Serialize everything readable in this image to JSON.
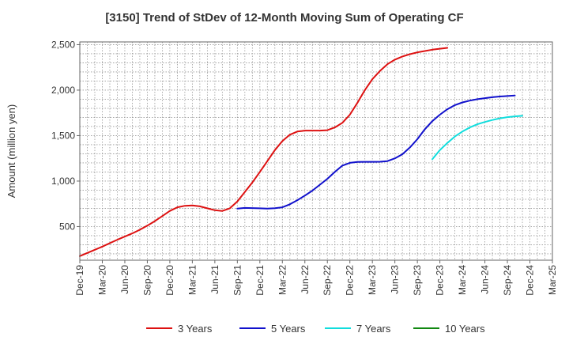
{
  "chart_data": {
    "type": "line",
    "title": "[3150]  Trend of StDev of 12-Month Moving Sum of Operating CF",
    "ylabel": "Amount (million yen)",
    "xlabel": "",
    "x_ticks": [
      "Dec-19",
      "Mar-20",
      "Jun-20",
      "Sep-20",
      "Dec-20",
      "Mar-21",
      "Jun-21",
      "Sep-21",
      "Dec-21",
      "Mar-22",
      "Jun-22",
      "Sep-22",
      "Dec-22",
      "Mar-23",
      "Jun-23",
      "Sep-23",
      "Dec-23",
      "Mar-24",
      "Jun-24",
      "Sep-24",
      "Dec-24",
      "Mar-25"
    ],
    "y_ticks": [
      500,
      1000,
      1500,
      2000,
      2500
    ],
    "y_tick_labels": [
      "500",
      "1,000",
      "1,500",
      "2,000",
      "2,500"
    ],
    "ylim": [
      130,
      2530
    ],
    "grid": true,
    "legend_position": "bottom",
    "series": [
      {
        "name": "3 Years",
        "color": "#dd1111",
        "start_index": 0,
        "values": [
          175,
          210,
          245,
          280,
          318,
          355,
          390,
          425,
          465,
          510,
          560,
          615,
          672,
          712,
          728,
          732,
          722,
          700,
          680,
          672,
          700,
          775,
          880,
          985,
          1100,
          1220,
          1340,
          1440,
          1510,
          1545,
          1555,
          1555,
          1555,
          1560,
          1590,
          1640,
          1730,
          1860,
          2000,
          2120,
          2210,
          2285,
          2335,
          2370,
          2395,
          2415,
          2430,
          2445,
          2455,
          2465
        ]
      },
      {
        "name": "5 Years",
        "color": "#1111cc",
        "start_index": 21,
        "values": [
          697,
          705,
          703,
          700,
          698,
          702,
          712,
          745,
          790,
          840,
          895,
          960,
          1025,
          1100,
          1170,
          1200,
          1210,
          1212,
          1212,
          1213,
          1220,
          1250,
          1295,
          1370,
          1460,
          1570,
          1660,
          1730,
          1790,
          1835,
          1865,
          1885,
          1900,
          1912,
          1922,
          1930,
          1935,
          1940
        ]
      },
      {
        "name": "7 Years",
        "color": "#11dddd",
        "start_index": 47,
        "values": [
          1240,
          1340,
          1420,
          1490,
          1545,
          1590,
          1625,
          1650,
          1672,
          1690,
          1703,
          1712,
          1718
        ]
      },
      {
        "name": "10 Years",
        "color": "#118811",
        "start_index": 0,
        "values": []
      }
    ]
  }
}
